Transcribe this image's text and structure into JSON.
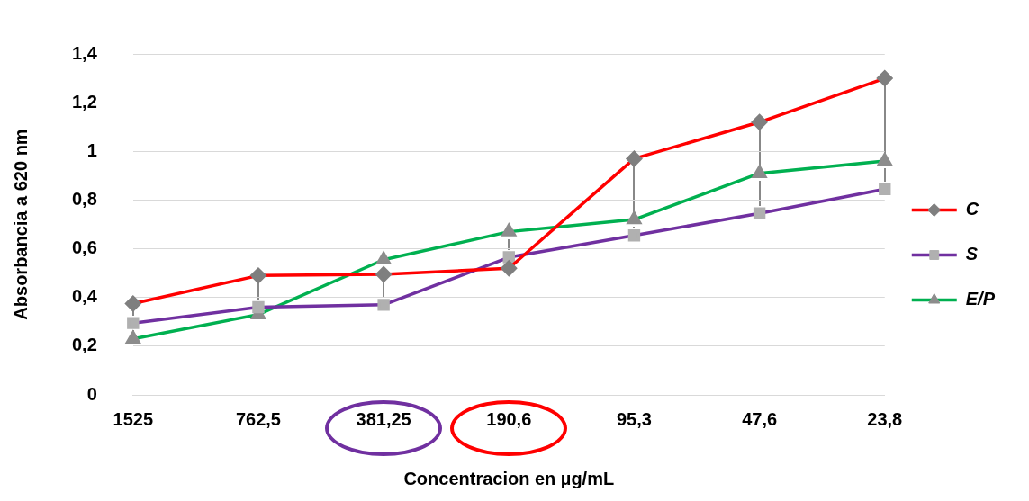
{
  "chart_data": {
    "type": "line",
    "xlabel": "Concentracion en µg/mL",
    "ylabel": "Absorbancia a 620 nm",
    "categories": [
      "1525",
      "762,5",
      "381,25",
      "190,6",
      "95,3",
      "47,6",
      "23,8"
    ],
    "series": [
      {
        "name": "C",
        "color": "#ff0000",
        "marker": "diamond",
        "values": [
          0.375,
          0.49,
          0.495,
          0.52,
          0.97,
          1.12,
          1.3
        ]
      },
      {
        "name": "S",
        "color": "#7030a0",
        "marker": "square",
        "values": [
          0.295,
          0.36,
          0.37,
          0.565,
          0.655,
          0.745,
          0.845
        ]
      },
      {
        "name": "E/P",
        "color": "#00b050",
        "marker": "triangle",
        "values": [
          0.23,
          0.33,
          0.555,
          0.67,
          0.72,
          0.91,
          0.96
        ]
      }
    ],
    "ylim": [
      0,
      1.4
    ],
    "yticks": [
      0,
      {
        "value": 0.2,
        "label": "0,2"
      },
      {
        "value": 0.4,
        "label": "0,4"
      },
      {
        "value": 0.6,
        "label": "0,6"
      },
      {
        "value": 0.8,
        "label": "0,8"
      },
      1,
      {
        "value": 1.2,
        "label": "1,2"
      },
      {
        "value": 1.4,
        "label": "1,4"
      }
    ],
    "grid": "y",
    "legend": "right",
    "line_style": "solid"
  }
}
